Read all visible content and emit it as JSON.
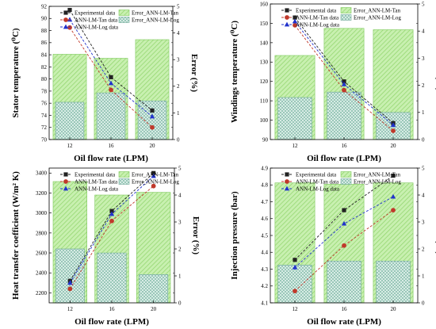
{
  "chart_data": [
    {
      "type": "bar",
      "categories": [
        "12",
        "16",
        "20"
      ],
      "xlabel": "Oil flow rate (LPM)",
      "ylabel": "Stator temperature (⁰C)",
      "y2label": "Error (%)",
      "ylim": [
        70,
        92
      ],
      "yticks": [
        70,
        72,
        74,
        76,
        78,
        80,
        82,
        84,
        86,
        88,
        90,
        92
      ],
      "y2lim": [
        0,
        5
      ],
      "y2ticks": [
        0,
        1,
        2,
        3,
        4,
        5
      ],
      "legend": [
        "Experimental data",
        "ANN-LM-Tan data",
        "ANN-LM-Log data",
        "Error_ANN-LM-Tan",
        "Error_ANN-LM-Log"
      ],
      "series": [
        {
          "name": "Experimental data",
          "kind": "line",
          "axis": "left",
          "color": "#222222",
          "marker": "square",
          "values": [
            91.4,
            80.3,
            74.8
          ]
        },
        {
          "name": "ANN-LM-Tan data",
          "kind": "line",
          "axis": "left",
          "color": "#c0392b",
          "marker": "circle",
          "values": [
            88.5,
            78.2,
            72.0
          ]
        },
        {
          "name": "ANN-LM-Log data",
          "kind": "line",
          "axis": "left",
          "color": "#2233cc",
          "marker": "triangle",
          "values": [
            89.8,
            79.3,
            73.8
          ]
        },
        {
          "name": "Error_ANN-LM-Tan",
          "kind": "bar",
          "axis": "right",
          "color": "#b9ec9e",
          "values": [
            3.2,
            3.05,
            3.75
          ]
        },
        {
          "name": "Error_ANN-LM-Log",
          "kind": "bar",
          "axis": "right",
          "color": "#cde7dc",
          "values": [
            1.4,
            1.75,
            1.45
          ]
        }
      ]
    },
    {
      "type": "bar",
      "categories": [
        "12",
        "16",
        "20"
      ],
      "xlabel": "Oil flow rate (LPM)",
      "ylabel": "Windings temperature (⁰C)",
      "y2label": "Error (%)",
      "ylim": [
        90,
        160
      ],
      "yticks": [
        90,
        100,
        110,
        120,
        130,
        140,
        150,
        160
      ],
      "y2lim": [
        0,
        5
      ],
      "y2ticks": [
        0,
        1,
        2,
        3,
        4,
        5
      ],
      "legend": [
        "Experimental data",
        "ANN-LM-Tan data",
        "ANN-LM-Log data",
        "Error_ANN-LM-Tan",
        "Error_ANN-LM-Log"
      ],
      "series": [
        {
          "name": "Experimental data",
          "kind": "line",
          "axis": "left",
          "color": "#222222",
          "marker": "square",
          "values": [
            153.0,
            120.0,
            98.5
          ]
        },
        {
          "name": "ANN-LM-Tan data",
          "kind": "line",
          "axis": "left",
          "color": "#c0392b",
          "marker": "circle",
          "values": [
            149.0,
            115.5,
            94.5
          ]
        },
        {
          "name": "ANN-LM-Log data",
          "kind": "line",
          "axis": "left",
          "color": "#2233cc",
          "marker": "triangle",
          "values": [
            151.0,
            118.5,
            97.5
          ]
        },
        {
          "name": "Error_ANN-LM-Tan",
          "kind": "bar",
          "axis": "right",
          "color": "#b9ec9e",
          "values": [
            3.1,
            4.1,
            4.05
          ]
        },
        {
          "name": "Error_ANN-LM-Log",
          "kind": "bar",
          "axis": "right",
          "color": "#cde7dc",
          "values": [
            1.55,
            1.75,
            1.0
          ]
        }
      ]
    },
    {
      "type": "bar",
      "categories": [
        "12",
        "16",
        "20"
      ],
      "xlabel": "Oil flow rate (LPM)",
      "ylabel": "Heat transfer coefficient (W/m² K)",
      "y2label": "Error (%)",
      "ylim": [
        2100,
        3450
      ],
      "yticks": [
        2200,
        2400,
        2600,
        2800,
        3000,
        3200,
        3400
      ],
      "y2lim": [
        0,
        5
      ],
      "y2ticks": [
        0,
        1,
        2,
        3,
        4,
        5
      ],
      "legend": [
        "Experimental data",
        "ANN-LM-Tan data",
        "ANN-LM-Log data",
        "Error_ANN-LM-Tan",
        "Error_ANN-LM-Log"
      ],
      "series": [
        {
          "name": "Experimental data",
          "kind": "line",
          "axis": "left",
          "color": "#222222",
          "marker": "square",
          "values": [
            2320,
            3020,
            3400
          ]
        },
        {
          "name": "ANN-LM-Tan data",
          "kind": "line",
          "axis": "left",
          "color": "#c0392b",
          "marker": "circle",
          "values": [
            2240,
            2920,
            3270
          ]
        },
        {
          "name": "ANN-LM-Log data",
          "kind": "line",
          "axis": "left",
          "color": "#2233cc",
          "marker": "triangle",
          "values": [
            2300,
            2990,
            3370
          ]
        },
        {
          "name": "Error_ANN-LM-Tan",
          "kind": "bar",
          "axis": "right",
          "color": "#b9ec9e",
          "values": [
            4.5,
            4.0,
            4.1
          ]
        },
        {
          "name": "Error_ANN-LM-Log",
          "kind": "bar",
          "axis": "right",
          "color": "#cde7dc",
          "values": [
            2.0,
            1.85,
            1.05
          ]
        }
      ]
    },
    {
      "type": "bar",
      "categories": [
        "12",
        "16",
        "20"
      ],
      "xlabel": "Oil flow rate (LPM)",
      "ylabel": "Injection pressure (bar)",
      "y2label": "Error (%)",
      "ylim": [
        4.1,
        4.9
      ],
      "yticks": [
        4.1,
        4.2,
        4.3,
        4.4,
        4.5,
        4.6,
        4.7,
        4.8,
        4.9
      ],
      "y2lim": [
        0,
        5
      ],
      "y2ticks": [
        0,
        1,
        2,
        3,
        4,
        5
      ],
      "legend": [
        "Experimental data",
        "ANN-LM-Tan data",
        "ANN-LM-Log data",
        "Error_ANN-LM-Tan",
        "Error_ANN-LM-Log"
      ],
      "series": [
        {
          "name": "Experimental data",
          "kind": "line",
          "axis": "left",
          "color": "#222222",
          "marker": "square",
          "values": [
            4.355,
            4.65,
            4.855
          ]
        },
        {
          "name": "ANN-LM-Tan data",
          "kind": "line",
          "axis": "left",
          "color": "#c0392b",
          "marker": "circle",
          "values": [
            4.17,
            4.44,
            4.65
          ]
        },
        {
          "name": "ANN-LM-Log data",
          "kind": "line",
          "axis": "left",
          "color": "#2233cc",
          "marker": "triangle",
          "values": [
            4.31,
            4.57,
            4.73
          ]
        },
        {
          "name": "Error_ANN-LM-Tan",
          "kind": "bar",
          "axis": "right",
          "color": "#b9ec9e",
          "values": [
            4.45,
            4.4,
            4.45
          ]
        },
        {
          "name": "Error_ANN-LM-Log",
          "kind": "bar",
          "axis": "right",
          "color": "#cde7dc",
          "values": [
            1.4,
            1.55,
            1.55
          ]
        }
      ]
    }
  ]
}
